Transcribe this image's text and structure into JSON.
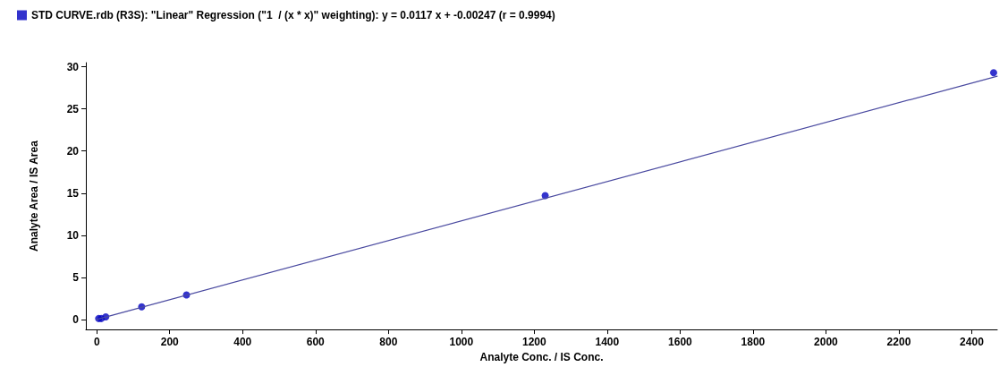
{
  "chart_data": {
    "type": "scatter",
    "xlabel": "Analyte Conc. / IS Conc.",
    "ylabel": "Analyte Area / IS Area",
    "xlim": [
      -30,
      2470
    ],
    "ylim": [
      -1.2,
      30.5
    ],
    "xticks": [
      0,
      200,
      400,
      600,
      800,
      1000,
      1200,
      1400,
      1600,
      1800,
      2000,
      2200,
      2400
    ],
    "yticks": [
      0,
      5,
      10,
      15,
      20,
      25,
      30
    ],
    "grid": false,
    "legend": "top left",
    "marker": "circle",
    "series": [
      {
        "name": "STD CURVE.rdb (R3S): \"Linear\" Regression (\"1  / (x * x)\" weighting): y = 0.0117 x + -0.00247 (r = 0.9994)",
        "color": "#0000c0",
        "x": [
          4.92,
          12.3,
          24.6,
          123,
          246,
          1230,
          2460
        ],
        "values": [
          0.1,
          0.1,
          0.3,
          1.5,
          2.9,
          14.7,
          29.3
        ]
      },
      {
        "type": "line",
        "color": "#4a4aa0",
        "marker": "none",
        "line_style": "solid",
        "x": [
          0,
          2470
        ],
        "values": [
          0,
          28.9
        ]
      }
    ]
  }
}
